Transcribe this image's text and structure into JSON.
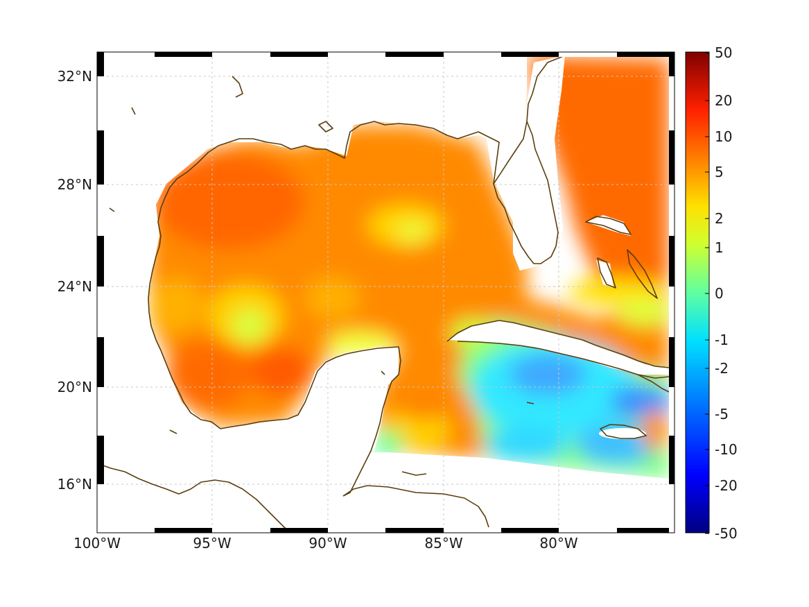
{
  "map": {
    "lon_ticks": [
      "100°W",
      "95°W",
      "90°W",
      "85°W",
      "80°W"
    ],
    "lat_ticks": [
      "32°N",
      "28°N",
      "24°N",
      "20°N",
      "16°N"
    ]
  },
  "colorbar": {
    "labels": [
      "50",
      "20",
      "10",
      "5",
      "2",
      "1",
      "0",
      "-1",
      "-2",
      "-5",
      "-10",
      "-20",
      "-50"
    ]
  },
  "colors": {
    "coast": "#5a3d0e",
    "land": "#ffffff",
    "grid": "#c8c8c8"
  }
}
